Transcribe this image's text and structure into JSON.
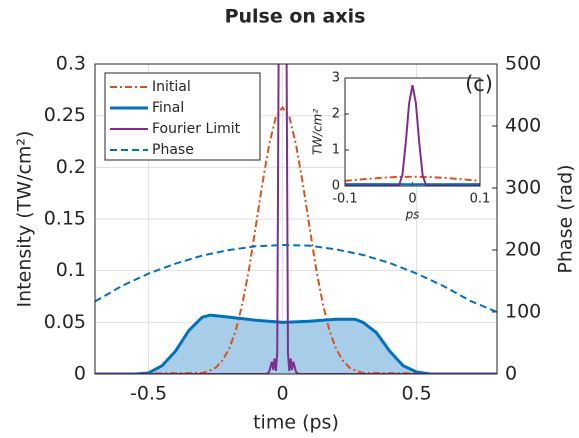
{
  "chart_data": {
    "type": "line",
    "title": "Pulse on axis",
    "xlabel": "time (ps)",
    "ylabel": "Intensity (TW/cm²)",
    "y2label": "Phase (rad)",
    "xlim": [
      -0.7,
      0.8
    ],
    "ylim": [
      0,
      0.3
    ],
    "y2lim": [
      0,
      500
    ],
    "xticks": [
      -0.5,
      0,
      0.5
    ],
    "yticks": [
      0,
      0.05,
      0.1,
      0.15,
      0.2,
      0.25,
      0.3
    ],
    "y2ticks": [
      0,
      100,
      200,
      300,
      400,
      500
    ],
    "grid": true,
    "legend": "upper left",
    "series": [
      {
        "name": "Initial",
        "color": "#d95319",
        "style": "dash-dot",
        "x": [
          -0.7,
          -0.3,
          -0.275,
          -0.25,
          -0.225,
          -0.2,
          -0.175,
          -0.15,
          -0.125,
          -0.1,
          -0.075,
          -0.05,
          -0.025,
          0,
          0.025,
          0.05,
          0.075,
          0.1,
          0.125,
          0.15,
          0.175,
          0.2,
          0.225,
          0.25,
          0.275,
          0.3,
          0.8
        ],
        "values": [
          0,
          0.001,
          0.003,
          0.006,
          0.013,
          0.024,
          0.042,
          0.068,
          0.102,
          0.143,
          0.185,
          0.222,
          0.249,
          0.258,
          0.249,
          0.222,
          0.185,
          0.143,
          0.102,
          0.068,
          0.042,
          0.024,
          0.013,
          0.006,
          0.003,
          0.001,
          0
        ]
      },
      {
        "name": "Final",
        "color": "#0072bd",
        "style": "solid",
        "fill": "#a8cde8",
        "x": [
          -0.7,
          -0.55,
          -0.5,
          -0.45,
          -0.4,
          -0.35,
          -0.3,
          -0.27,
          -0.2,
          -0.1,
          0,
          0.1,
          0.2,
          0.27,
          0.3,
          0.35,
          0.4,
          0.45,
          0.5,
          0.55,
          0.6,
          0.8
        ],
        "values": [
          0,
          0,
          0.001,
          0.008,
          0.022,
          0.042,
          0.055,
          0.057,
          0.055,
          0.052,
          0.05,
          0.051,
          0.053,
          0.053,
          0.05,
          0.04,
          0.022,
          0.008,
          0.002,
          0,
          0,
          0
        ]
      },
      {
        "name": "Fourier Limit",
        "color": "#7e2f8e",
        "style": "solid",
        "x": [
          -0.7,
          -0.06,
          -0.05,
          -0.04,
          -0.035,
          -0.03,
          -0.025,
          -0.02,
          -0.015,
          -0.01,
          -0.005,
          0,
          0.005,
          0.01,
          0.015,
          0.02,
          0.025,
          0.03,
          0.035,
          0.04,
          0.05,
          0.06,
          0.8
        ],
        "values": [
          0,
          0,
          0.002,
          0.012,
          0.004,
          0.015,
          0.003,
          0.02,
          0.3,
          1.2,
          2.3,
          2.8,
          2.3,
          1.2,
          0.3,
          0.02,
          0.003,
          0.015,
          0.004,
          0.012,
          0.002,
          0,
          0
        ]
      },
      {
        "name": "Phase",
        "color": "#0072bd",
        "style": "dashed",
        "axis": "y2",
        "x": [
          -0.7,
          -0.6,
          -0.5,
          -0.4,
          -0.3,
          -0.2,
          -0.1,
          0,
          0.1,
          0.2,
          0.3,
          0.4,
          0.5,
          0.6,
          0.7,
          0.8
        ],
        "values": [
          117,
          142,
          162,
          178,
          191,
          200,
          206,
          208,
          207,
          201,
          192,
          179,
          162,
          142,
          118,
          100
        ]
      }
    ],
    "inset": {
      "annotation": "(c)",
      "xlabel": "ps",
      "ylabel": "TW/cm²",
      "xlim": [
        -0.1,
        0.1
      ],
      "ylim": [
        0,
        3
      ],
      "xticks": [
        -0.1,
        0,
        0.1
      ],
      "yticks": [
        0,
        1,
        2,
        3
      ]
    }
  }
}
